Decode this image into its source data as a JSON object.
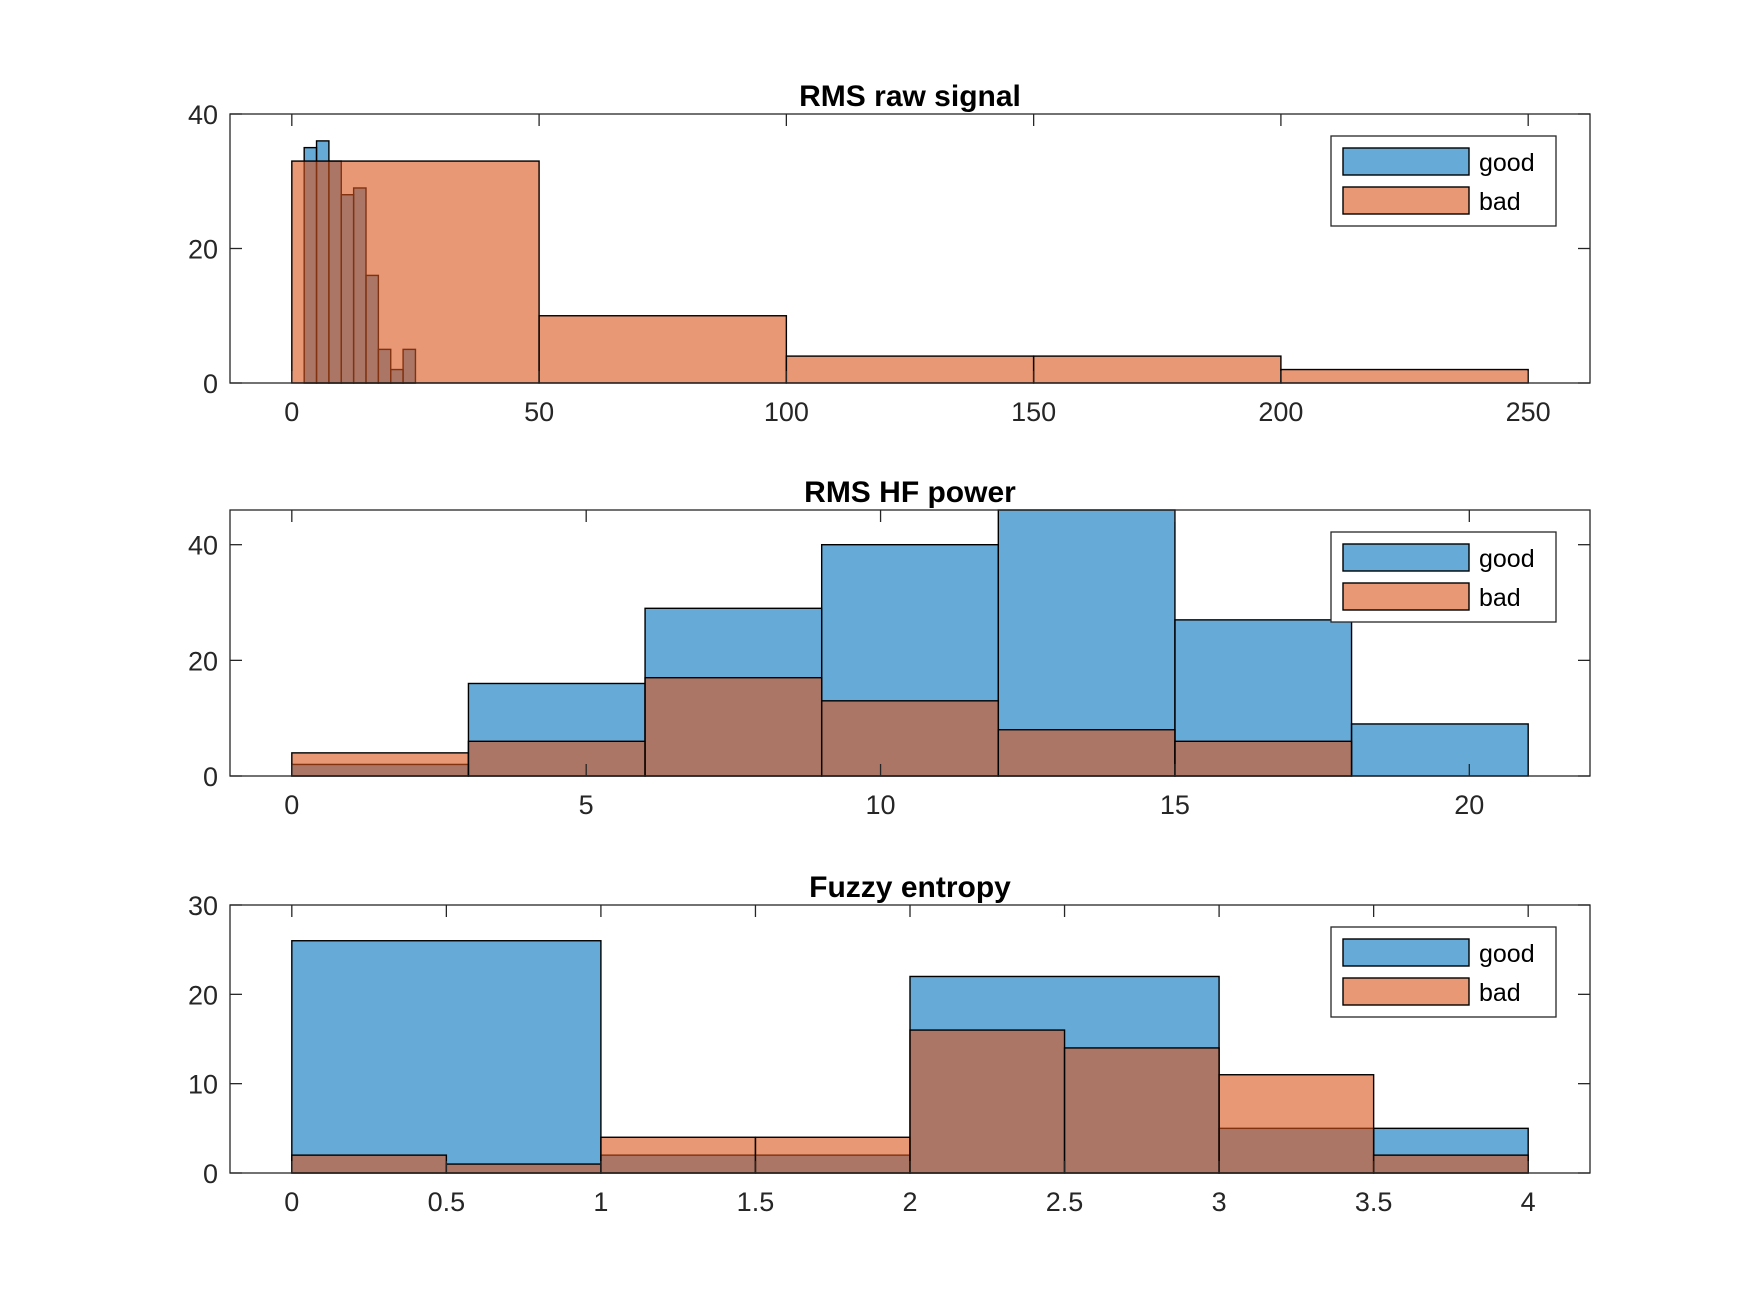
{
  "chart_data": [
    {
      "type": "bar",
      "title": "RMS raw signal",
      "xlabel": "",
      "ylabel": "",
      "xlim": [
        -12.5,
        262.5
      ],
      "ylim": [
        0,
        40
      ],
      "xticks": [
        0,
        50,
        100,
        150,
        200,
        250
      ],
      "yticks": [
        0,
        20,
        40
      ],
      "legend_position": "top-right",
      "series": [
        {
          "name": "good",
          "color": "#0072BD",
          "bins": [
            [
              2.5,
              5
            ],
            [
              5,
              7.5
            ],
            [
              7.5,
              10
            ],
            [
              10,
              12.5
            ],
            [
              12.5,
              15
            ],
            [
              15,
              17.5
            ],
            [
              17.5,
              20
            ],
            [
              20,
              22.5
            ],
            [
              22.5,
              25
            ],
            [
              25,
              27.5
            ]
          ],
          "values": [
            35,
            36,
            33,
            28,
            29,
            16,
            5,
            2,
            5,
            0
          ]
        },
        {
          "name": "bad",
          "color": "#D95319",
          "bins": [
            [
              0,
              50
            ],
            [
              50,
              100
            ],
            [
              100,
              150
            ],
            [
              150,
              200
            ],
            [
              200,
              250
            ]
          ],
          "values": [
            33,
            10,
            4,
            4,
            2
          ]
        }
      ]
    },
    {
      "type": "bar",
      "title": "RMS HF power",
      "xlabel": "",
      "ylabel": "",
      "xlim": [
        -1.05,
        22.05
      ],
      "ylim": [
        0,
        46
      ],
      "xticks": [
        0,
        5,
        10,
        15,
        20
      ],
      "yticks": [
        0,
        20,
        40
      ],
      "legend_position": "top-right",
      "series": [
        {
          "name": "good",
          "color": "#0072BD",
          "bins": [
            [
              0,
              3
            ],
            [
              3,
              6
            ],
            [
              6,
              9
            ],
            [
              9,
              12
            ],
            [
              12,
              15
            ],
            [
              15,
              18
            ],
            [
              18,
              21
            ]
          ],
          "values": [
            2,
            16,
            29,
            40,
            46,
            27,
            9
          ]
        },
        {
          "name": "bad",
          "color": "#D95319",
          "bins": [
            [
              0,
              3
            ],
            [
              3,
              6
            ],
            [
              6,
              9
            ],
            [
              9,
              12
            ],
            [
              12,
              15
            ],
            [
              15,
              18
            ],
            [
              18,
              21
            ]
          ],
          "values": [
            4,
            6,
            17,
            13,
            8,
            6,
            0
          ]
        }
      ]
    },
    {
      "type": "bar",
      "title": "Fuzzy entropy",
      "xlabel": "",
      "ylabel": "",
      "xlim": [
        -0.2,
        4.2
      ],
      "ylim": [
        0,
        30
      ],
      "xticks": [
        0,
        0.5,
        1,
        1.5,
        2,
        2.5,
        3,
        3.5,
        4
      ],
      "yticks": [
        0,
        10,
        20,
        30
      ],
      "legend_position": "top-right",
      "series": [
        {
          "name": "good",
          "color": "#0072BD",
          "bins": [
            [
              0,
              1
            ],
            [
              1,
              2
            ],
            [
              2,
              3
            ],
            [
              3,
              3.5
            ],
            [
              3.5,
              4
            ]
          ],
          "values": [
            26,
            2,
            22,
            5,
            5
          ]
        },
        {
          "name": "bad",
          "color": "#D95319",
          "bins": [
            [
              0,
              0.5
            ],
            [
              0.5,
              1
            ],
            [
              1,
              1.5
            ],
            [
              1.5,
              2
            ],
            [
              2,
              2.5
            ],
            [
              2.5,
              3
            ],
            [
              3,
              3.5
            ],
            [
              3.5,
              4
            ]
          ],
          "values": [
            2,
            1,
            4,
            4,
            16,
            14,
            11,
            2
          ]
        }
      ]
    }
  ]
}
